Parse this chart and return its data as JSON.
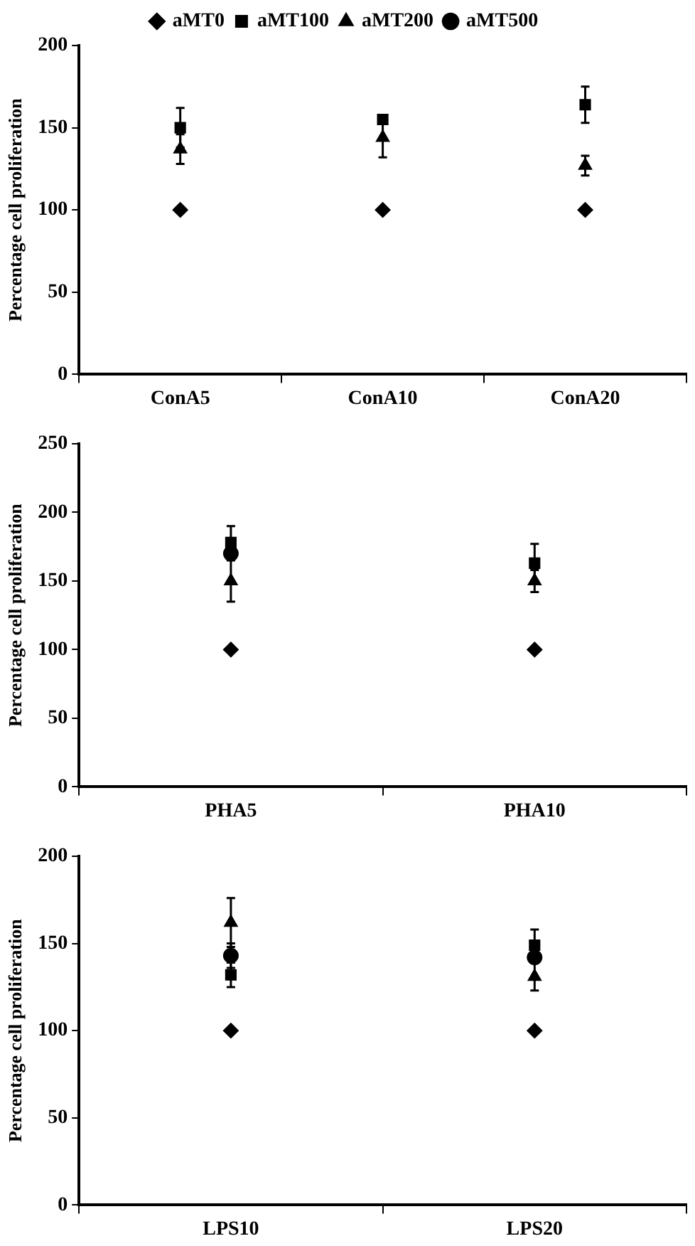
{
  "chart_data": [
    {
      "type": "scatter",
      "ylabel": "Percentage cell proliferation",
      "categories": [
        "ConA5",
        "ConA10",
        "ConA20"
      ],
      "ylim": [
        0,
        200
      ],
      "yticks": [
        0,
        50,
        100,
        150,
        200
      ],
      "legend": "top",
      "grid": false,
      "series": [
        {
          "name": "aMT0",
          "color": "#000000",
          "marker": "diamond",
          "values": [
            100,
            100,
            100
          ]
        },
        {
          "name": "aMT100",
          "color": "#000000",
          "marker": "square",
          "values": [
            150,
            155,
            164
          ],
          "errors": [
            12,
            null,
            11
          ]
        },
        {
          "name": "aMT200",
          "color": "#000000",
          "marker": "triangle",
          "values": [
            137,
            144,
            127
          ],
          "errors": [
            9,
            12,
            6
          ]
        },
        {
          "name": "aMT500",
          "color": "#000000",
          "marker": "circle",
          "values": [
            null,
            null,
            null
          ]
        }
      ]
    },
    {
      "type": "scatter",
      "ylabel": "Percentage cell proliferation",
      "categories": [
        "PHA5",
        "PHA10"
      ],
      "ylim": [
        0,
        250
      ],
      "yticks": [
        0,
        50,
        100,
        150,
        200,
        250
      ],
      "legend": false,
      "grid": false,
      "series": [
        {
          "color": "#000000",
          "marker": "diamond",
          "values": [
            100,
            100
          ]
        },
        {
          "color": "#000000",
          "marker": "square",
          "values": [
            178,
            163
          ],
          "errors": [
            12,
            14
          ]
        },
        {
          "color": "#000000",
          "marker": "triangle",
          "values": [
            150,
            150
          ],
          "errors": [
            15,
            8
          ]
        },
        {
          "color": "#000000",
          "marker": "circle",
          "values": [
            170,
            null
          ]
        }
      ]
    },
    {
      "type": "scatter",
      "ylabel": "Percentage cell proliferation",
      "categories": [
        "LPS10",
        "LPS20"
      ],
      "ylim": [
        0,
        200
      ],
      "yticks": [
        0,
        50,
        100,
        150,
        200
      ],
      "legend": false,
      "grid": false,
      "series": [
        {
          "color": "#000000",
          "marker": "diamond",
          "values": [
            100,
            100
          ]
        },
        {
          "color": "#000000",
          "marker": "square",
          "values": [
            132,
            149
          ],
          "errors": [
            7,
            9
          ]
        },
        {
          "color": "#000000",
          "marker": "triangle",
          "values": [
            162,
            131
          ],
          "errors": [
            14,
            8
          ]
        },
        {
          "color": "#000000",
          "marker": "circle",
          "values": [
            143,
            142
          ],
          "errors": [
            7,
            null
          ]
        }
      ]
    }
  ]
}
